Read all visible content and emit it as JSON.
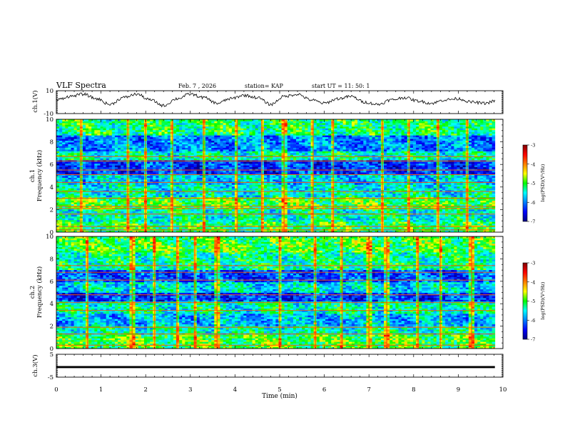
{
  "header": {
    "title": "VLF Spectra",
    "date": "Feb. 7  , 2026",
    "station": "station= KAP",
    "start": "start  UT  =   11: 50: 1"
  },
  "chart_data": [
    {
      "id": "ch1_waveform",
      "type": "line",
      "title": "VLF Spectra",
      "ylabel": "ch.1(V)",
      "xlabel": "",
      "xlim": [
        0,
        10
      ],
      "ylim": [
        -10,
        10
      ],
      "y_tick_labels": [
        "10",
        "-10"
      ],
      "x_data_range": [
        0,
        9.82
      ],
      "series": [
        {
          "name": "ch.1",
          "color": "#000000",
          "x": [
            0,
            0.3,
            0.6,
            0.9,
            1.2,
            1.5,
            1.8,
            2.1,
            2.4,
            2.7,
            3.0,
            3.3,
            3.6,
            3.9,
            4.2,
            4.5,
            4.8,
            5.1,
            5.4,
            5.7,
            6.0,
            6.3,
            6.6,
            6.9,
            7.2,
            7.5,
            7.8,
            8.1,
            8.4,
            8.7,
            9.0,
            9.3,
            9.6,
            9.82
          ],
          "values": [
            2,
            5,
            7,
            3,
            -2,
            4,
            7,
            2,
            -3,
            3,
            7,
            4,
            -1,
            3,
            6,
            4,
            -2,
            5,
            7,
            2,
            -1,
            3,
            5,
            0,
            -2,
            2,
            4,
            1,
            -1,
            2,
            3,
            0,
            -1,
            1
          ]
        }
      ]
    },
    {
      "id": "ch1_spectrogram",
      "type": "heatmap",
      "ylabel": "ch.1\nFrequency  (kHz)",
      "xlim": [
        0,
        10
      ],
      "ylim": [
        0,
        10
      ],
      "y_tick_labels": [
        "0",
        "2",
        "4",
        "6",
        "8",
        "10"
      ],
      "x_data_range": [
        0,
        9.82
      ],
      "colorbar": {
        "label": "log(PSD)(V²/Hz)",
        "range": [
          -7,
          -3
        ],
        "tick_labels": [
          "-3",
          "-4",
          "-5",
          "-6",
          "-7"
        ]
      },
      "base_log_psd": [
        {
          "f": [
            0.0,
            1.0
          ],
          "v": -5.1
        },
        {
          "f": [
            1.0,
            2.0
          ],
          "v": -5.4
        },
        {
          "f": [
            2.0,
            3.2
          ],
          "v": -5.0
        },
        {
          "f": [
            3.2,
            4.2
          ],
          "v": -5.5
        },
        {
          "f": [
            4.2,
            5.2
          ],
          "v": -5.7
        },
        {
          "f": [
            5.2,
            6.4
          ],
          "v": -6.3
        },
        {
          "f": [
            6.4,
            7.2
          ],
          "v": -5.4
        },
        {
          "f": [
            7.2,
            8.6
          ],
          "v": -6.0
        },
        {
          "f": [
            8.6,
            10.0
          ],
          "v": -5.2
        }
      ],
      "narrowband_lines_khz": [
        0.2,
        0.5,
        1.6,
        2.1,
        2.3,
        3.0,
        3.6,
        4.4,
        5.1,
        5.5,
        6.3,
        6.7
      ],
      "impulsive_columns_min": [
        0.55,
        1.6,
        2.0,
        2.6,
        3.3,
        4.05,
        4.6,
        5.1,
        5.75,
        6.2,
        7.3,
        7.9,
        8.55,
        9.2
      ]
    },
    {
      "id": "ch2_spectrogram",
      "type": "heatmap",
      "ylabel": "ch.2\nFrequency  (kHz)",
      "xlim": [
        0,
        10
      ],
      "ylim": [
        0,
        10
      ],
      "y_tick_labels": [
        "0",
        "2",
        "4",
        "6",
        "8",
        "10"
      ],
      "x_data_range": [
        0,
        9.82
      ],
      "colorbar": {
        "label": "log(PSD)(V²/Hz)",
        "range": [
          -7,
          -3
        ],
        "tick_labels": [
          "-3",
          "-4",
          "-5",
          "-6",
          "-7"
        ]
      },
      "base_log_psd": [
        {
          "f": [
            0.0,
            1.2
          ],
          "v": -5.0
        },
        {
          "f": [
            1.2,
            2.0
          ],
          "v": -5.4
        },
        {
          "f": [
            2.0,
            3.2
          ],
          "v": -5.8
        },
        {
          "f": [
            3.2,
            4.2
          ],
          "v": -5.4
        },
        {
          "f": [
            4.2,
            5.0
          ],
          "v": -6.3
        },
        {
          "f": [
            5.0,
            6.0
          ],
          "v": -5.6
        },
        {
          "f": [
            6.0,
            7.0
          ],
          "v": -6.2
        },
        {
          "f": [
            7.0,
            8.6
          ],
          "v": -5.3
        },
        {
          "f": [
            8.6,
            10.0
          ],
          "v": -5.0
        }
      ],
      "narrowband_lines_khz": [
        0.3,
        1.3,
        1.9,
        3.4,
        4.1,
        4.8,
        6.1,
        6.8,
        7.4
      ],
      "impulsive_columns_min": [
        0.7,
        1.7,
        2.2,
        2.7,
        3.1,
        3.6,
        5.0,
        5.8,
        6.4,
        7.0,
        7.4,
        8.1,
        8.6,
        9.3
      ]
    },
    {
      "id": "ch3_waveform",
      "type": "line",
      "ylabel": "ch.3(V)",
      "xlabel": "Time  (min)",
      "xlim": [
        0,
        10
      ],
      "ylim": [
        -5,
        5
      ],
      "y_tick_labels": [
        "5",
        "-5"
      ],
      "x_tick_labels": [
        "0",
        "1",
        "2",
        "3",
        "4",
        "5",
        "6",
        "7",
        "8",
        "9",
        "10"
      ],
      "x_data_range": [
        0,
        9.82
      ],
      "series": [
        {
          "name": "ch.3",
          "color": "#000000",
          "x": [
            0,
            9.82
          ],
          "values": [
            -0.6,
            -0.6
          ],
          "band_halfwidth": 0.45
        }
      ]
    }
  ]
}
